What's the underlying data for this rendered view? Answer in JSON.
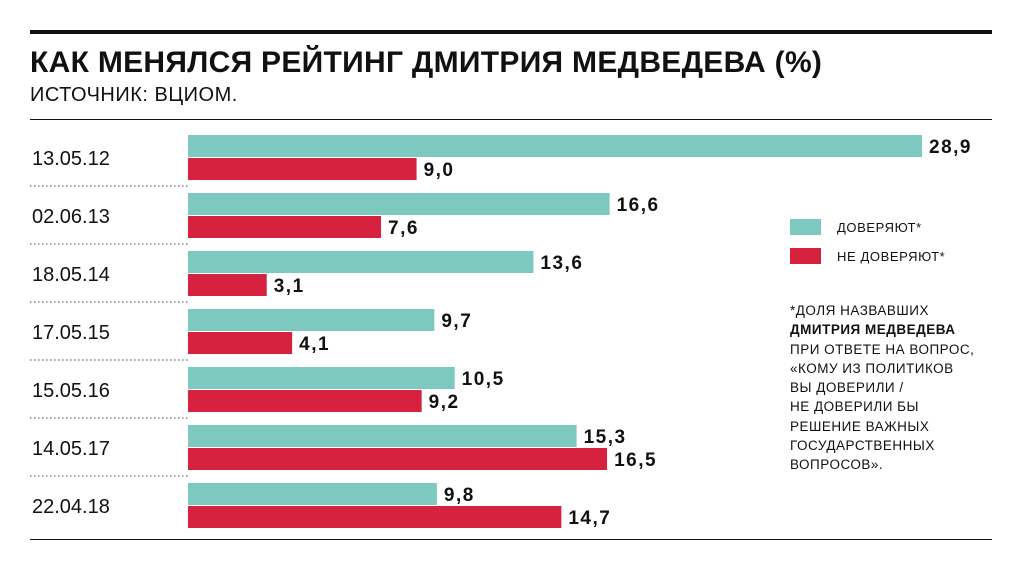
{
  "header": {
    "title": "КАК МЕНЯЛСЯ РЕЙТИНГ ДМИТРИЯ МЕДВЕДЕВА (%)",
    "subtitle": "ИСТОЧНИК: ВЦИОМ."
  },
  "legend": {
    "trust_label": "ДОВЕРЯЮТ*",
    "distrust_label": "НЕ ДОВЕРЯЮТ*"
  },
  "note": {
    "line1": "*ДОЛЯ НАЗВАВШИХ",
    "line2": "ДМИТРИЯ МЕДВЕДЕВА",
    "line3": "ПРИ ОТВЕТЕ НА ВОПРОС,",
    "line4": "«КОМУ ИЗ ПОЛИТИКОВ",
    "line5": "ВЫ ДОВЕРИЛИ /",
    "line6": "НЕ ДОВЕРИЛИ БЫ",
    "line7": "РЕШЕНИЕ ВАЖНЫХ",
    "line8": "ГОСУДАРСТВЕННЫХ",
    "line9": "ВОПРОСОВ»."
  },
  "colors": {
    "trust": "#7dc8bf",
    "distrust": "#d6213f"
  },
  "chart_data": {
    "type": "bar",
    "orientation": "horizontal",
    "categories": [
      "13.05.12",
      "02.06.13",
      "18.05.14",
      "17.05.15",
      "15.05.16",
      "14.05.17",
      "22.04.18"
    ],
    "series": [
      {
        "name": "ДОВЕРЯЮТ*",
        "values": [
          28.9,
          16.6,
          13.6,
          9.7,
          10.5,
          15.3,
          9.8
        ],
        "labels": [
          "28,9",
          "16,6",
          "13,6",
          "9,7",
          "10,5",
          "15,3",
          "9,8"
        ]
      },
      {
        "name": "НЕ ДОВЕРЯЮТ*",
        "values": [
          9.0,
          7.6,
          3.1,
          4.1,
          9.2,
          16.5,
          14.7
        ],
        "labels": [
          "9,0",
          "7,6",
          "3,1",
          "4,1",
          "9,2",
          "16,5",
          "14,7"
        ]
      }
    ],
    "title": "КАК МЕНЯЛСЯ РЕЙТИНГ ДМИТРИЯ МЕДВЕДЕВА (%)",
    "xlim": [
      0,
      30
    ],
    "grid": false,
    "legend_position": "right"
  }
}
